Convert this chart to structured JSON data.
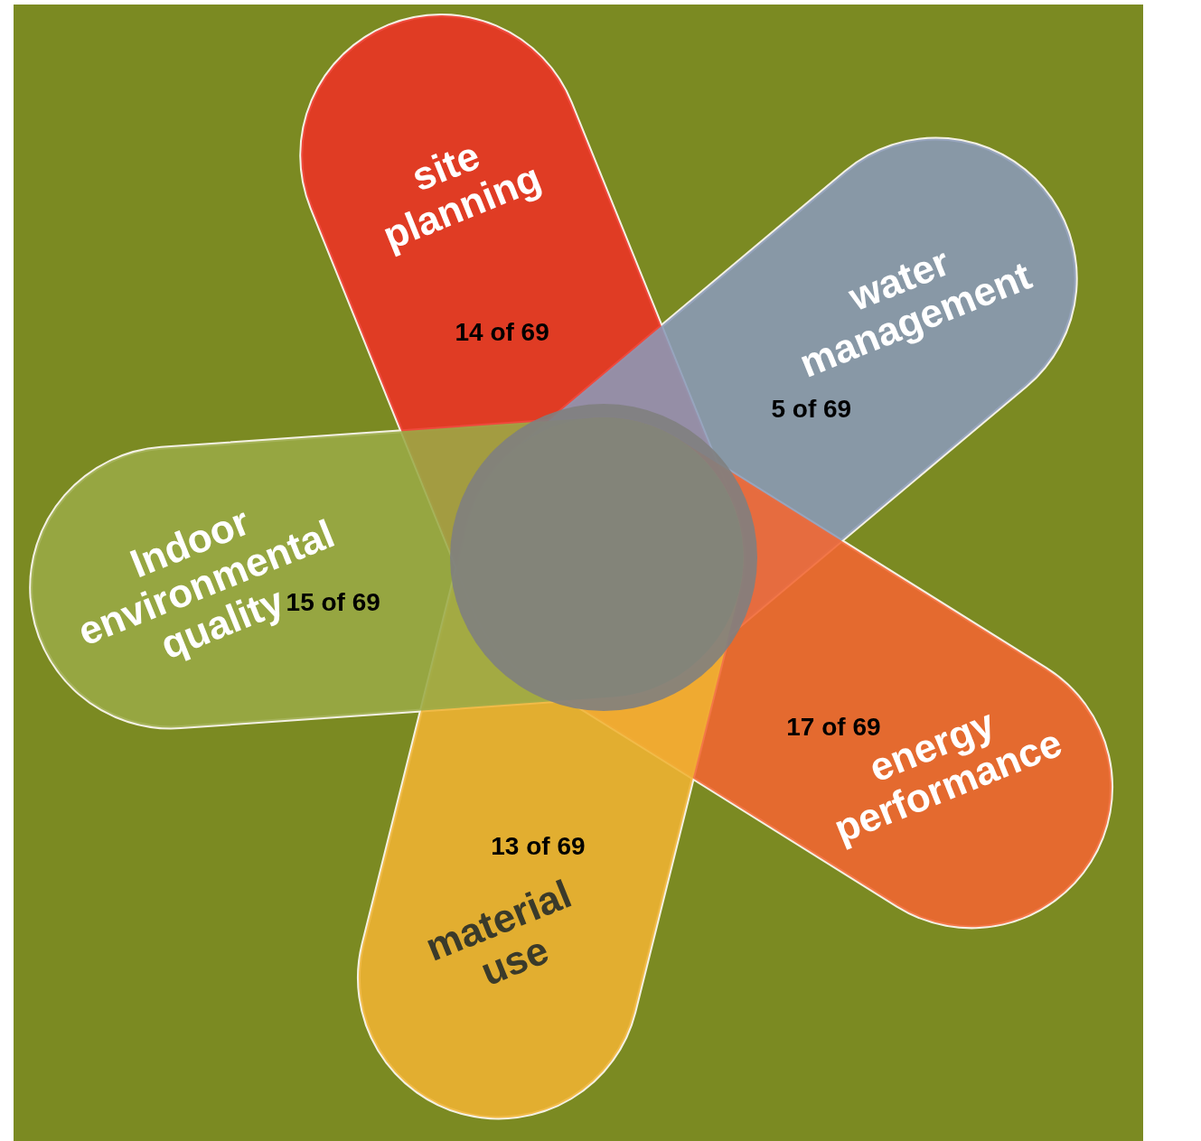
{
  "chart_data": {
    "type": "other",
    "categories": [
      "site planning",
      "water management",
      "energy performance",
      "material use",
      "Indoor environmental quality"
    ],
    "values": [
      14,
      5,
      17,
      13,
      15
    ],
    "value_labels": [
      "14 of 69",
      "5 of 69",
      "17 of 69",
      "13 of 69",
      "15 of 69"
    ],
    "colors": [
      "#ee3124",
      "#8a9ab8",
      "#f26531",
      "#f0b332",
      "#9aaa45"
    ]
  }
}
